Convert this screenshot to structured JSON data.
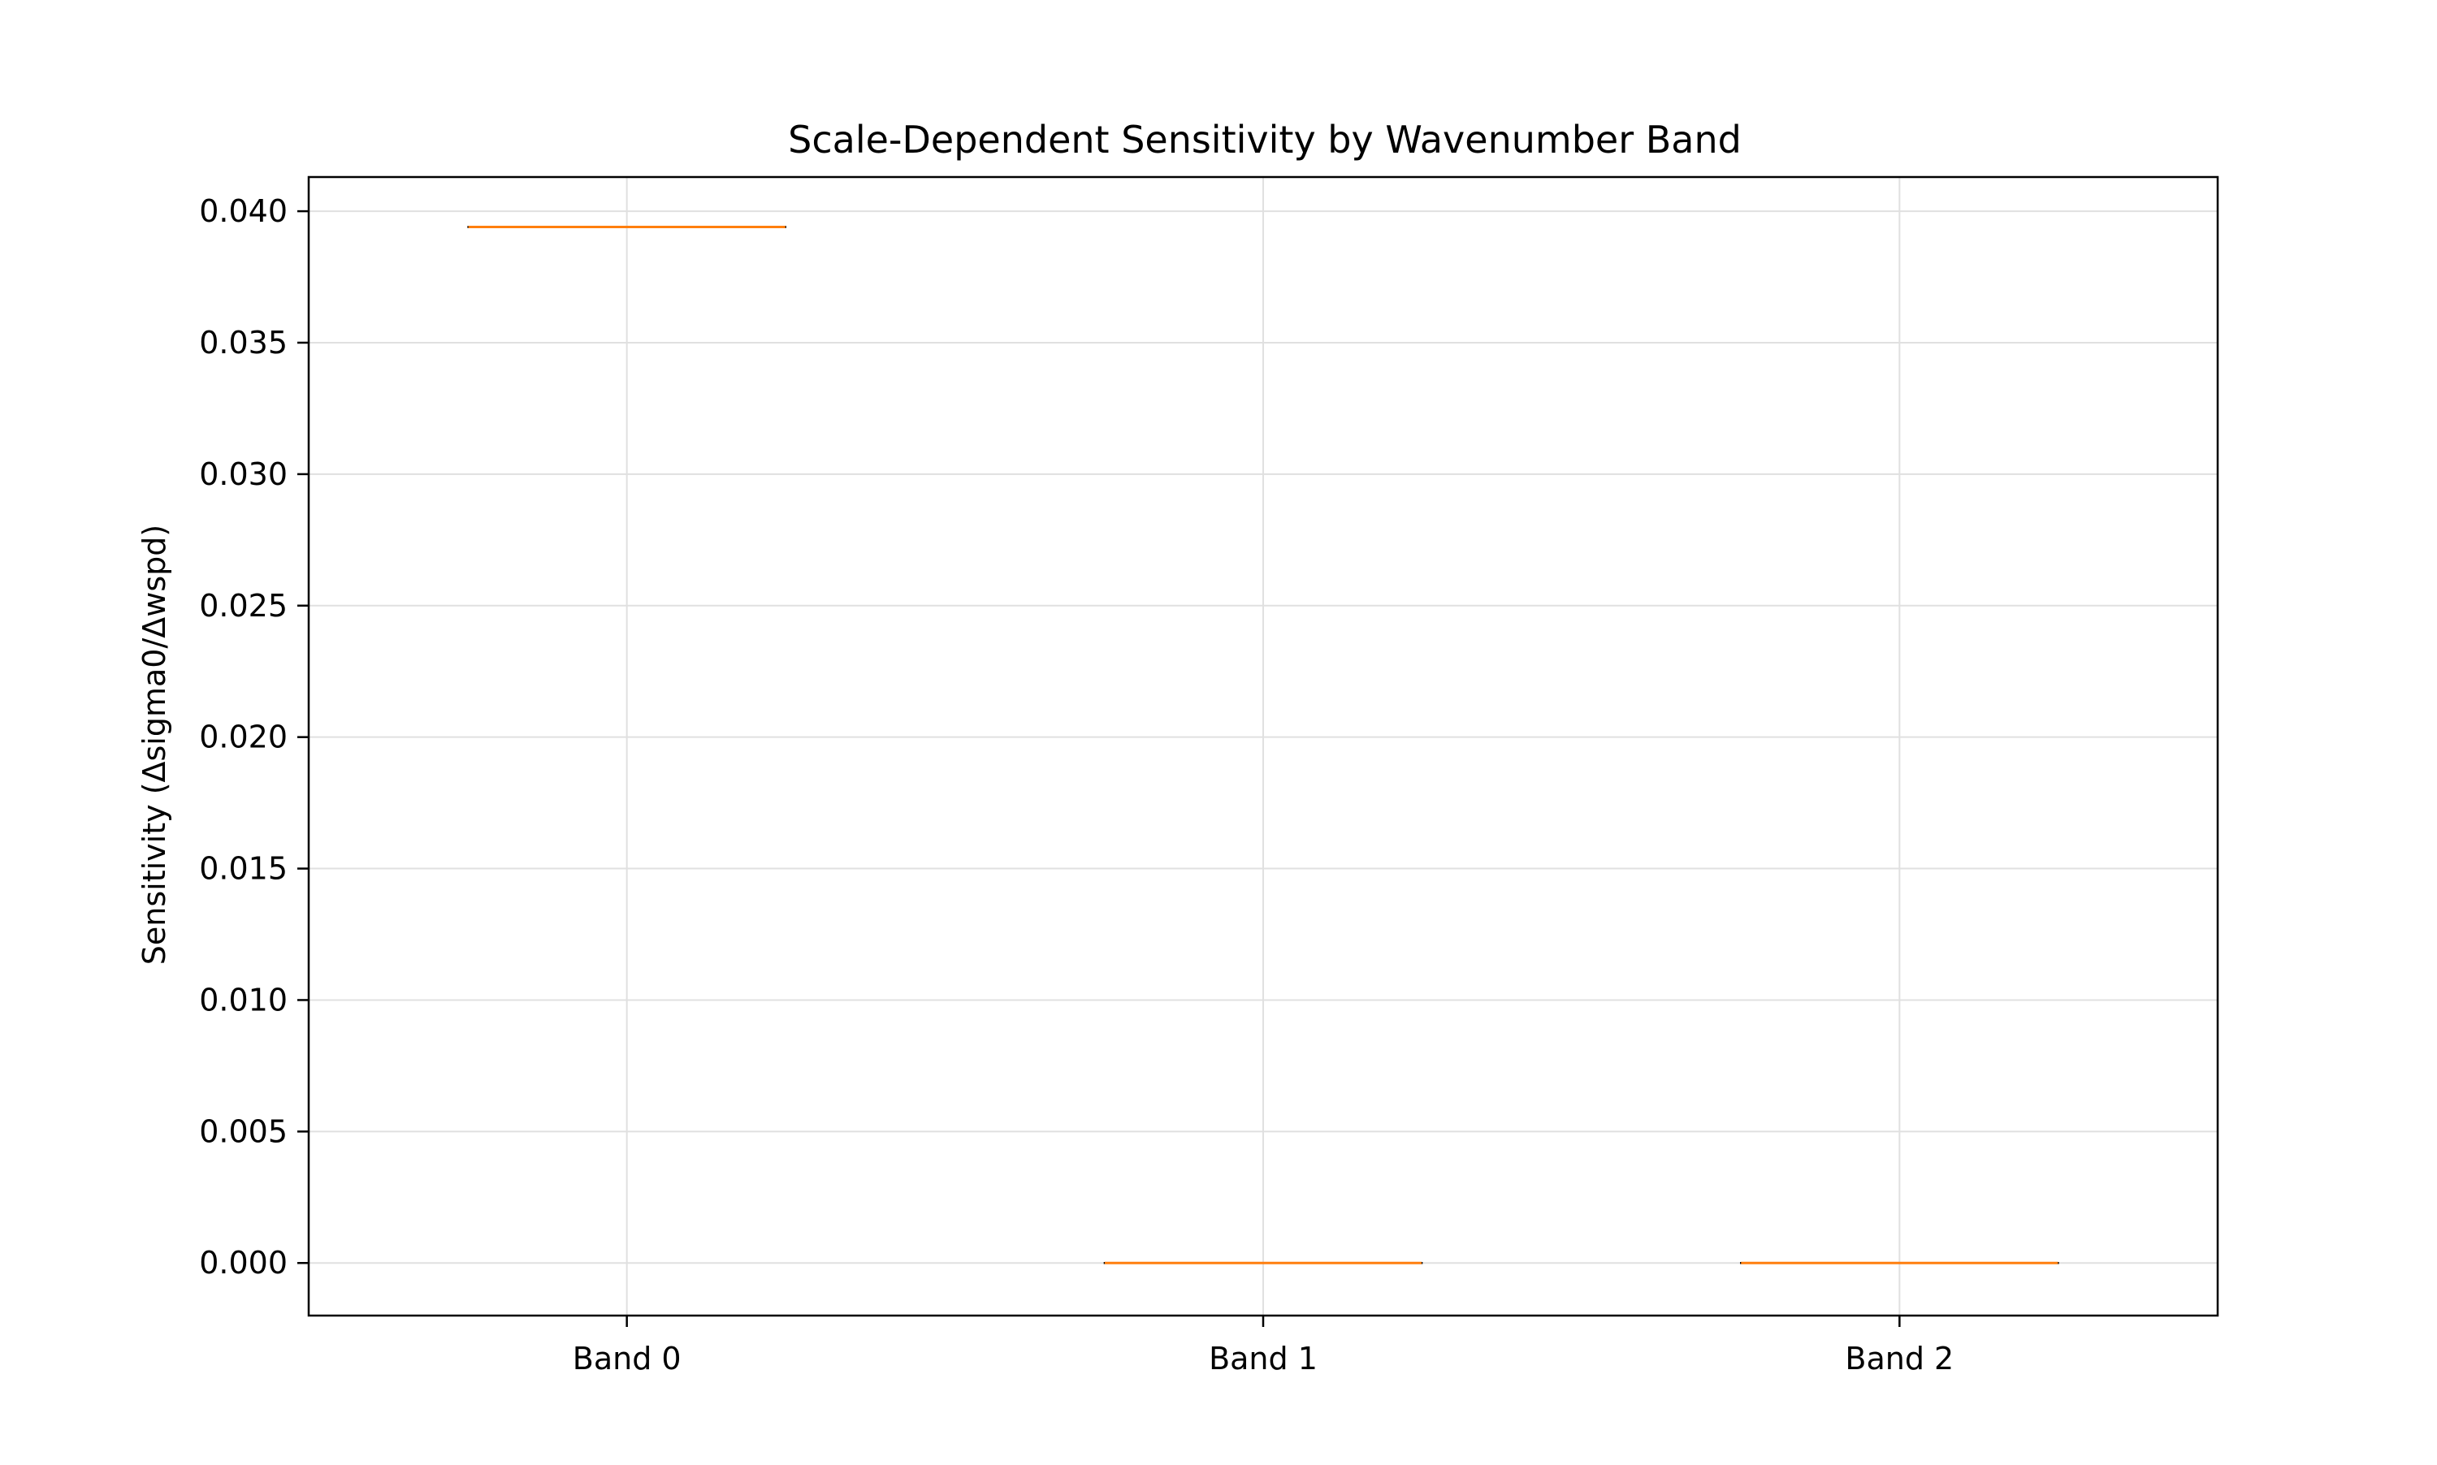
{
  "chart_data": {
    "type": "box",
    "title": "Scale-Dependent Sensitivity by Wavenumber Band",
    "xlabel": "",
    "ylabel": "Sensitivity (Δsigma0/Δwspd)",
    "categories": [
      "Band 0",
      "Band 1",
      "Band 2"
    ],
    "series": [
      {
        "values": [
          0.0394,
          0.0,
          0.0
        ],
        "box_stats": [
          {
            "category": "Band 0",
            "min": 0.0394,
            "q1": 0.0394,
            "median": 0.0394,
            "q3": 0.0394,
            "max": 0.0394
          },
          {
            "category": "Band 1",
            "min": 0.0,
            "q1": 0.0,
            "median": 0.0,
            "q3": 0.0,
            "max": 0.0
          },
          {
            "category": "Band 2",
            "min": 0.0,
            "q1": 0.0,
            "median": 0.0,
            "q3": 0.0,
            "max": 0.0
          }
        ]
      }
    ],
    "ylim": [
      -0.002,
      0.0413
    ],
    "yticks": [
      0.0,
      0.005,
      0.01,
      0.015,
      0.02,
      0.025,
      0.03,
      0.035,
      0.04
    ],
    "ytick_labels": [
      "0.000",
      "0.005",
      "0.010",
      "0.015",
      "0.020",
      "0.025",
      "0.030",
      "0.035",
      "0.040"
    ],
    "grid": true,
    "legend": "none",
    "colors": {
      "median": "#ff7f0e",
      "box": "#000000",
      "grid": "#e0e0e0",
      "axes": "#000000"
    }
  }
}
